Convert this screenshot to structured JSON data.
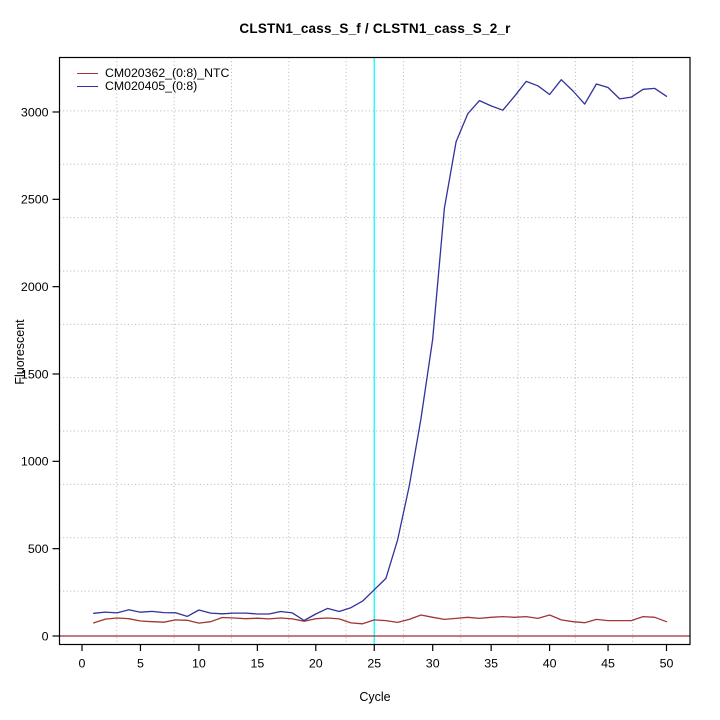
{
  "title": "CLSTN1_cass_S_f / CLSTN1_cass_S_2_r",
  "axes": {
    "x_label": "Cycle",
    "y_label": "Fluorescent"
  },
  "chart_data": {
    "type": "line",
    "title": "CLSTN1_cass_S_f / CLSTN1_cass_S_2_r",
    "xlabel": "Cycle",
    "ylabel": "Fluorescent",
    "x_ticks": [
      0,
      5,
      10,
      15,
      20,
      25,
      30,
      35,
      40,
      45,
      50
    ],
    "y_ticks": [
      0,
      500,
      1000,
      1500,
      2000,
      2500,
      3000
    ],
    "xlim": [
      -2,
      52
    ],
    "ylim": [
      -50,
      3310
    ],
    "grid": {
      "nx": 11,
      "ny": 11,
      "style": "dotted",
      "color": "#b4b4b4"
    },
    "legend_position": "top-left",
    "x": [
      1,
      2,
      3,
      4,
      5,
      6,
      7,
      8,
      9,
      10,
      11,
      12,
      13,
      14,
      15,
      16,
      17,
      18,
      19,
      20,
      21,
      22,
      23,
      24,
      25,
      26,
      27,
      28,
      29,
      30,
      31,
      32,
      33,
      34,
      35,
      36,
      37,
      38,
      39,
      40,
      41,
      42,
      43,
      44,
      45,
      46,
      47,
      48,
      49,
      50
    ],
    "series": [
      {
        "name": "CM020362_(0:8)_NTC",
        "color": "#a23535",
        "values": [
          75,
          97,
          103,
          99,
          86,
          82,
          79,
          92,
          90,
          74,
          82,
          106,
          103,
          99,
          102,
          98,
          103,
          98,
          85,
          99,
          103,
          98,
          75,
          70,
          92,
          88,
          78,
          95,
          120,
          107,
          95,
          101,
          107,
          101,
          107,
          111,
          107,
          111,
          101,
          120,
          92,
          82,
          76,
          95,
          88,
          88,
          88,
          111,
          107,
          82
        ]
      },
      {
        "name": "CM020405_(0:8)",
        "color": "#32329b",
        "values": [
          130,
          137,
          132,
          150,
          136,
          141,
          134,
          133,
          112,
          149,
          131,
          127,
          131,
          131,
          126,
          126,
          140,
          132,
          89,
          126,
          158,
          140,
          162,
          200,
          265,
          330,
          550,
          860,
          1245,
          1700,
          2450,
          2830,
          2990,
          3065,
          3035,
          3010,
          3090,
          3175,
          3150,
          3100,
          3185,
          3120,
          3045,
          3160,
          3140,
          3075,
          3085,
          3130,
          3135,
          3090
        ]
      }
    ],
    "threshold_line": {
      "x": 25,
      "color": "#00ffff"
    },
    "zero_line": {
      "y": 0,
      "color": "#9e2e2e"
    }
  }
}
